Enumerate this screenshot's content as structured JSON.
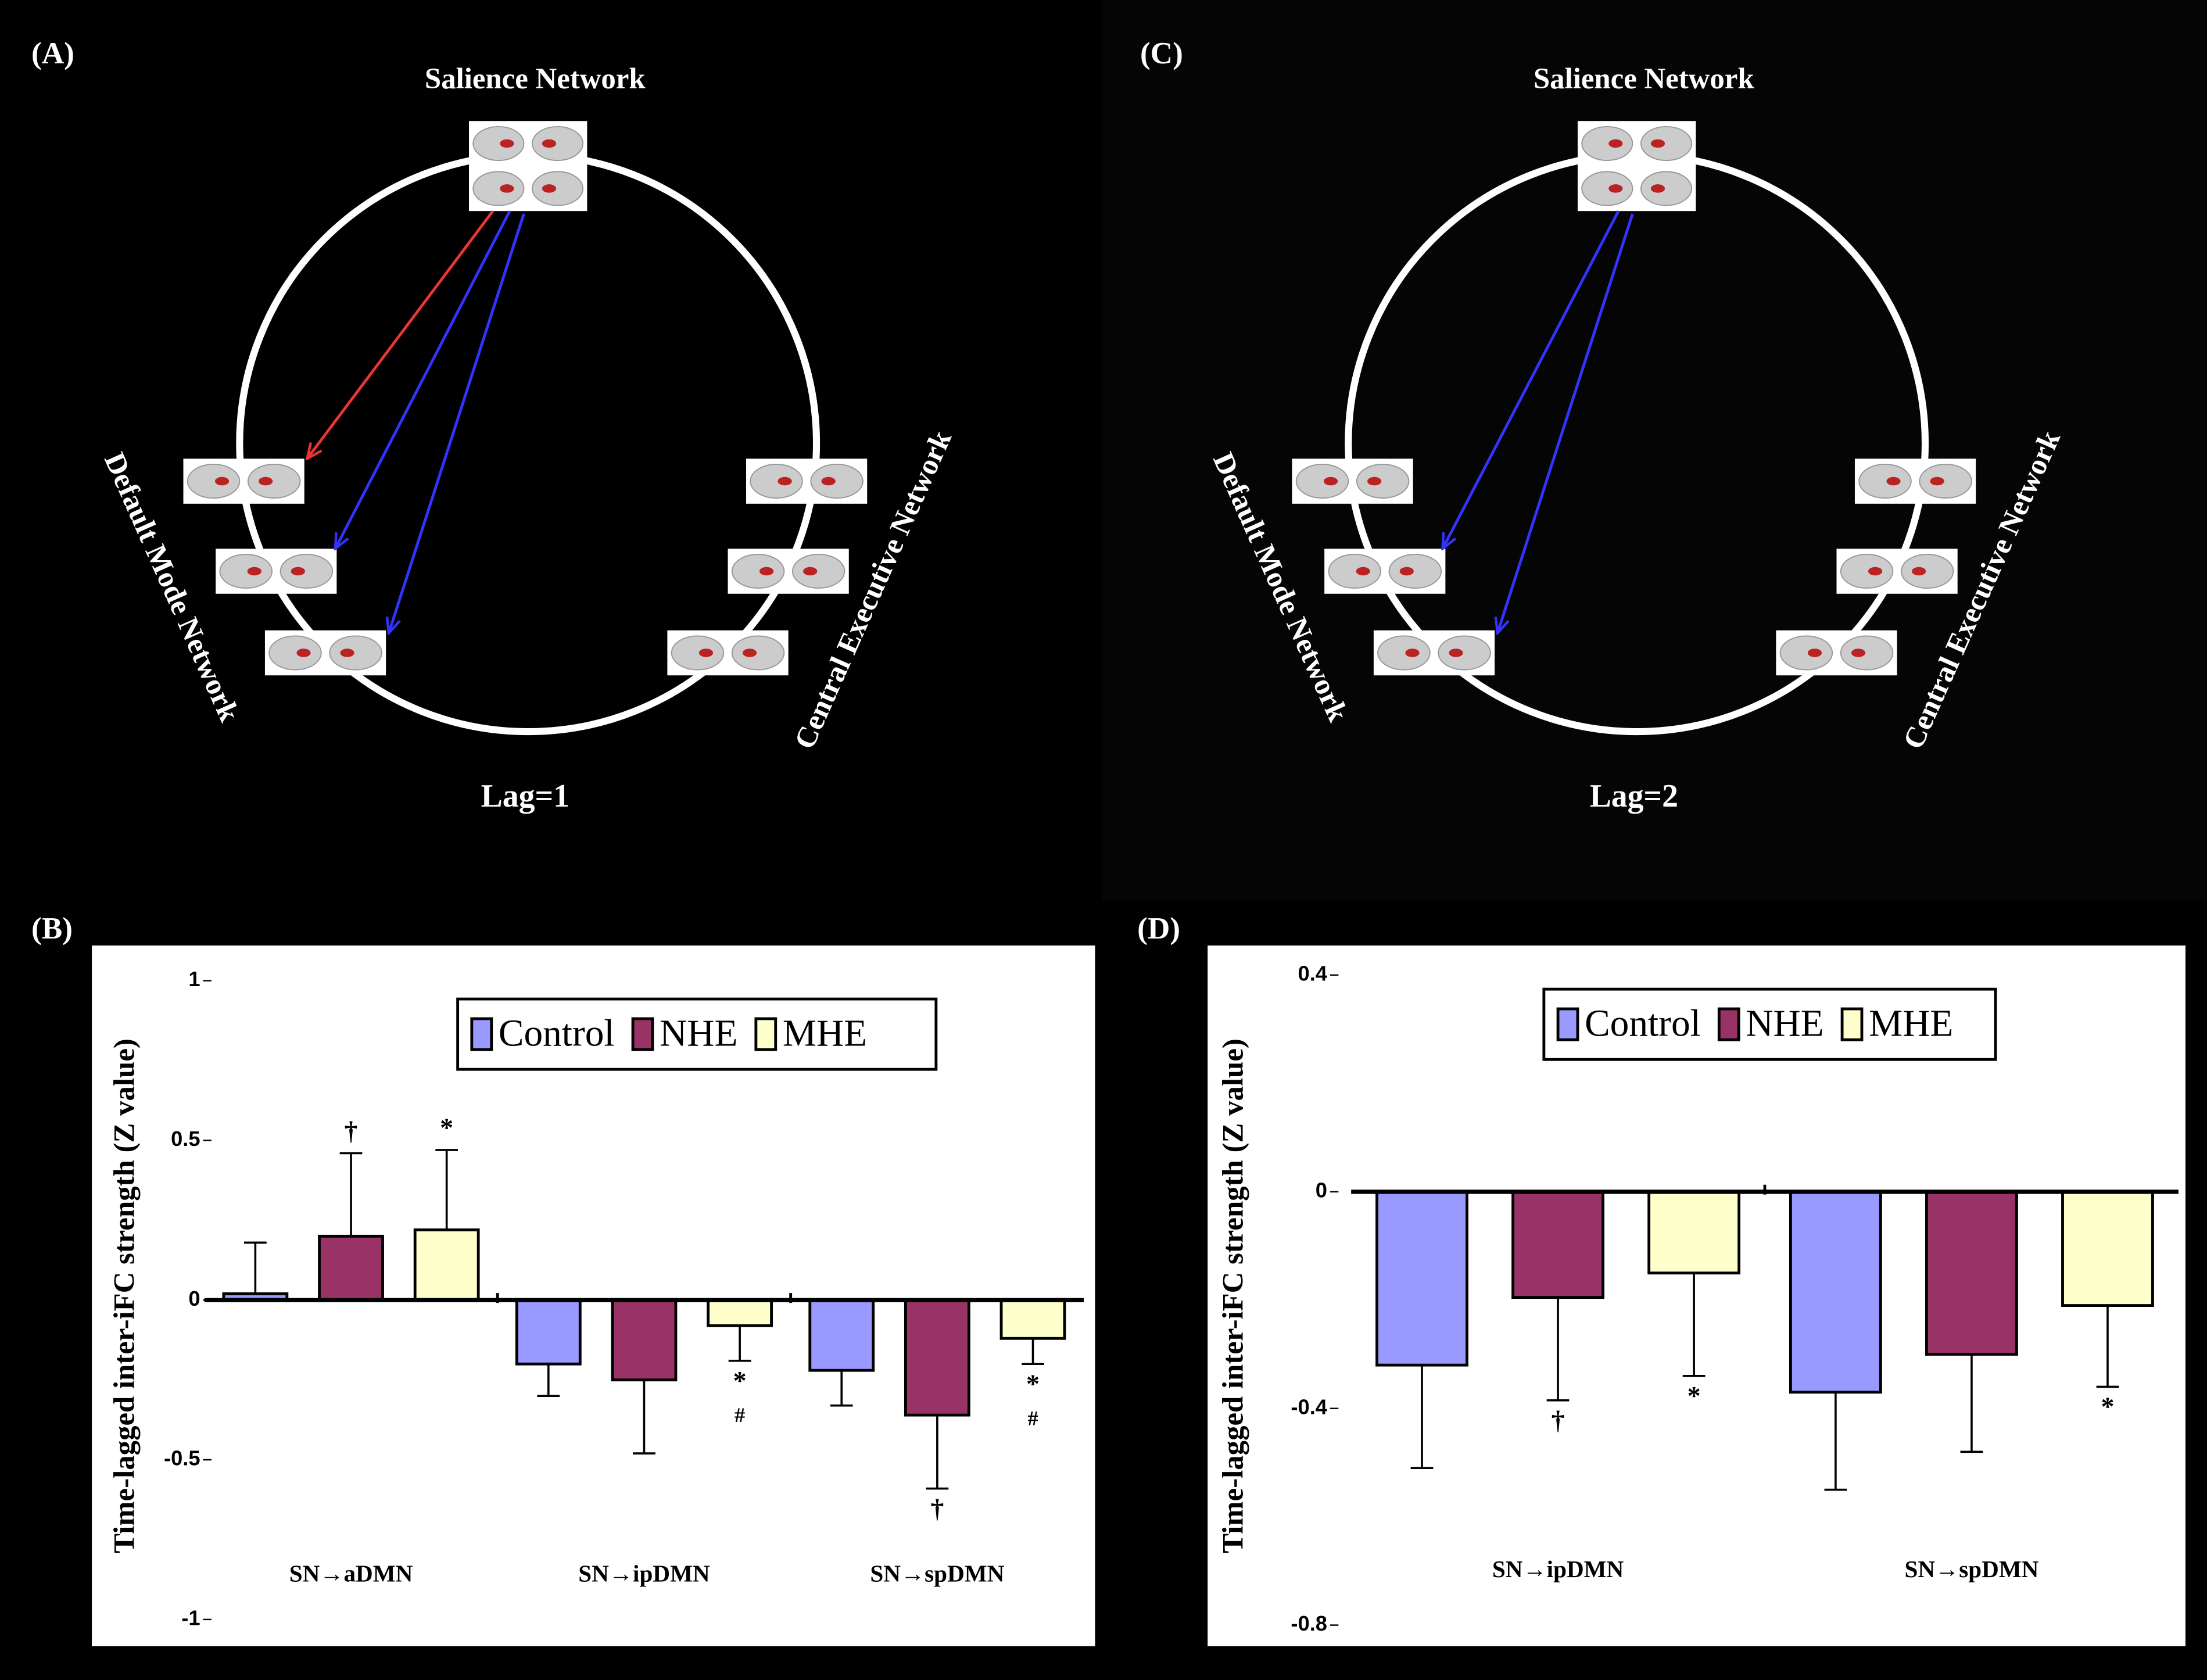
{
  "diagrams": [
    {
      "label": "(A)",
      "top": "Salience Network",
      "left": "Default Mode Network",
      "right": "Central Executive Network",
      "caption": "Lag=1"
    },
    {
      "label": "(C)",
      "top": "Salience Network",
      "left": "Default Mode Network",
      "right": "Central Executive Network",
      "caption": "Lag=2"
    }
  ],
  "chart_data": [
    {
      "type": "bar",
      "panel_label": "(B)",
      "y_label": "Time-lagged inter-iFC strength (Z value)",
      "categories": [
        "SN→aDMN",
        "SN→ipDMN",
        "SN→spDMN"
      ],
      "series": [
        {
          "name": "Control",
          "color": "#9999ff",
          "values": [
            0.02,
            -0.2,
            -0.22
          ],
          "errors": [
            0.16,
            0.1,
            0.11
          ],
          "annotations": [
            null,
            null,
            null
          ]
        },
        {
          "name": "NHE",
          "color": "#993366",
          "values": [
            0.2,
            -0.25,
            -0.36
          ],
          "errors": [
            0.26,
            0.23,
            0.23
          ],
          "annotations": [
            [
              "†"
            ],
            null,
            [
              "†"
            ]
          ]
        },
        {
          "name": "MHE",
          "color": "#ffffcc",
          "values": [
            0.22,
            -0.08,
            -0.12
          ],
          "errors": [
            0.25,
            0.11,
            0.08
          ],
          "annotations": [
            [
              "*"
            ],
            [
              "*",
              "#"
            ],
            [
              "*",
              "#"
            ]
          ]
        }
      ],
      "ylim": [
        -1,
        1
      ],
      "yticks": [
        1,
        0.5,
        0,
        -0.5,
        -1
      ]
    },
    {
      "type": "bar",
      "panel_label": "(D)",
      "y_label": "Time-lagged inter-iFC strength (Z value)",
      "categories": [
        "SN→ipDMN",
        "SN→spDMN"
      ],
      "series": [
        {
          "name": "Control",
          "color": "#9999ff",
          "values": [
            -0.32,
            -0.37
          ],
          "errors": [
            0.19,
            0.18
          ],
          "annotations": [
            null,
            null
          ]
        },
        {
          "name": "NHE",
          "color": "#993366",
          "values": [
            -0.195,
            -0.3
          ],
          "errors": [
            0.19,
            0.18
          ],
          "annotations": [
            [
              "†"
            ],
            null
          ]
        },
        {
          "name": "MHE",
          "color": "#ffffcc",
          "values": [
            -0.15,
            -0.21
          ],
          "errors": [
            0.19,
            0.15
          ],
          "annotations": [
            [
              "*"
            ],
            [
              "*"
            ]
          ]
        }
      ],
      "ylim": [
        -0.8,
        0.4
      ],
      "yticks": [
        0.4,
        0,
        -0.4,
        -0.8
      ]
    }
  ]
}
